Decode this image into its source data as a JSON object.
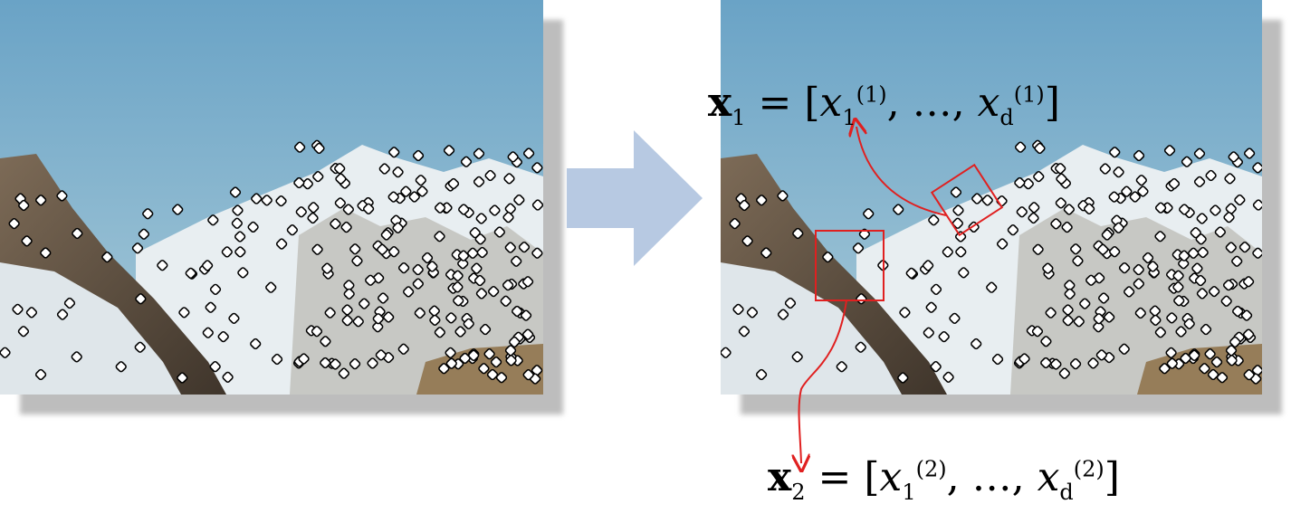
{
  "formulas": {
    "top": {
      "vec": "x",
      "vec_sub": "1",
      "eq": " = [",
      "comp": "x",
      "first_sub": "1",
      "first_sup": "(1)",
      "ellipsis": ", …, ",
      "last_sub": "d",
      "last_sup": "(1)",
      "close": "]"
    },
    "bottom": {
      "vec": "x",
      "vec_sub": "2",
      "eq": " = [",
      "comp": "x",
      "first_sub": "1",
      "first_sup": "(2)",
      "ellipsis": ", …, ",
      "last_sub": "d",
      "last_sup": "(2)",
      "close": "]"
    }
  },
  "colors": {
    "sky": "#8bb8cf",
    "rock": "#6b5b48",
    "snow": "#eef2f4",
    "keypoint": "#ffffff",
    "highlight": "#e02020",
    "arrow": "#b7c9e2"
  },
  "icons": {
    "transition": "right-arrow-icon",
    "keypoint": "keypoint-marker-icon"
  }
}
